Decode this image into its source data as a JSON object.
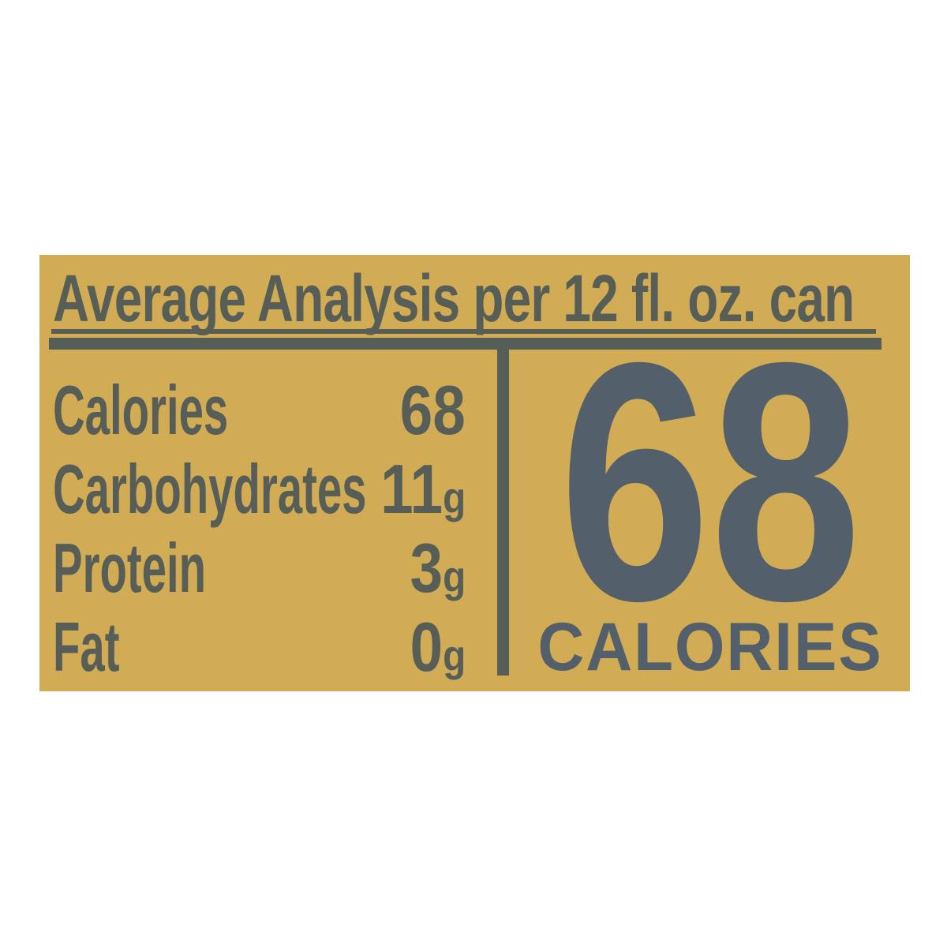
{
  "label_panel": {
    "title": "Average Analysis per 12 fl. oz. can",
    "nutrition_rows": [
      {
        "label": "Calories",
        "value": "68",
        "unit": ""
      },
      {
        "label": "Carbohydrates",
        "value": "11",
        "unit": "g"
      },
      {
        "label": "Protein",
        "value": "3",
        "unit": "g"
      },
      {
        "label": "Fat",
        "value": "0",
        "unit": "g"
      }
    ],
    "calorie_highlight": {
      "value": "68",
      "label": "CALORIES"
    },
    "colors": {
      "panel_background": "#d2ac55",
      "ink": "#575e57",
      "highlight_ink": "#53606b"
    }
  }
}
